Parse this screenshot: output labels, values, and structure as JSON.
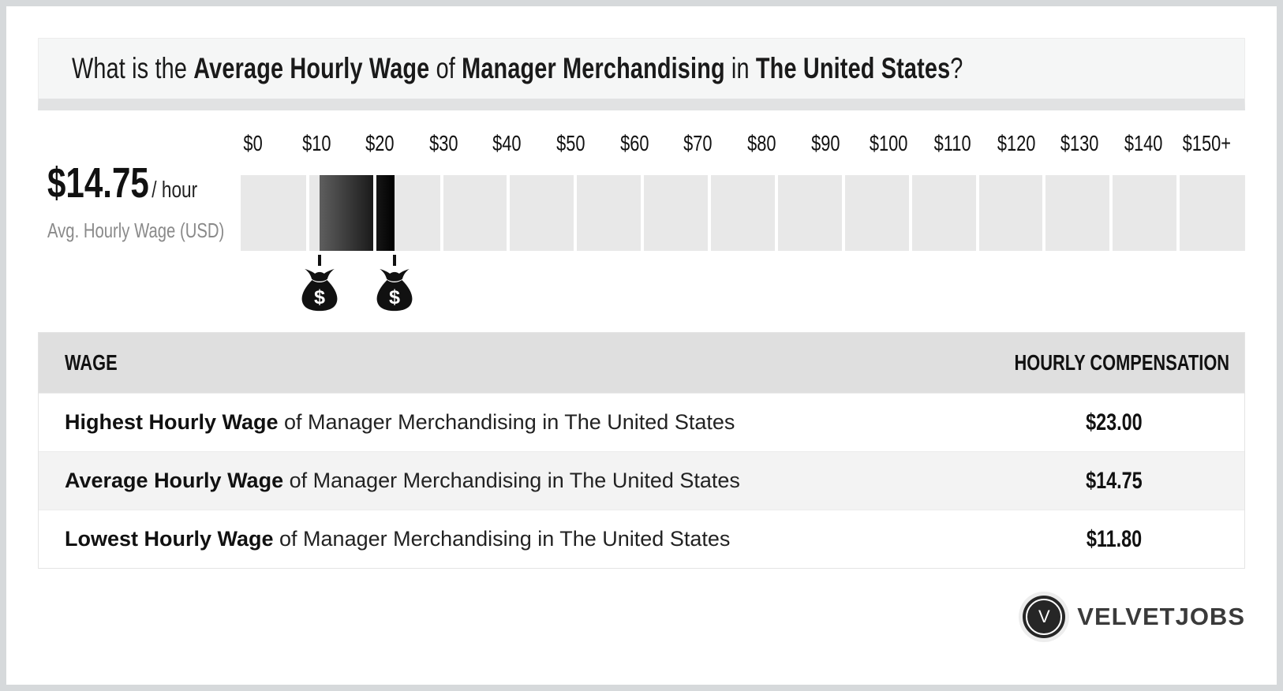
{
  "title": {
    "part1": "What is the ",
    "part2": "Average Hourly Wage",
    "part3": " of ",
    "part4": "Manager Merchandising",
    "part5": " in ",
    "part6": "The United States",
    "part7": "?"
  },
  "wage_summary": {
    "amount": "$14.75",
    "per": "/ hour",
    "caption": "Avg. Hourly Wage (USD)"
  },
  "chart_data": {
    "type": "bar",
    "subtype": "horizontal-wage-range-scale",
    "title": "What is the Average Hourly Wage of Manager Merchandising in The United States?",
    "tick_labels": [
      "$0",
      "$10",
      "$20",
      "$30",
      "$40",
      "$50",
      "$60",
      "$70",
      "$80",
      "$90",
      "$100",
      "$110",
      "$120",
      "$130",
      "$140",
      "$150+"
    ],
    "axis_min": 0,
    "axis_max": 150,
    "segments": 15,
    "lowest_wage": 11.8,
    "highest_wage": 23.0,
    "average_wage": 14.75,
    "range_markers": [
      {
        "icon": "money-bag-icon",
        "value": 11.8
      },
      {
        "icon": "money-bag-icon",
        "value": 23.0
      }
    ],
    "colors": {
      "track": "#e8e8e8",
      "range_start": "#5e5e5e",
      "range_end": "#000000",
      "marker": "#111111"
    },
    "legend": "off",
    "grid": "off"
  },
  "table": {
    "header_wage": "WAGE",
    "header_compensation": "HOURLY COMPENSATION",
    "rows": [
      {
        "bold": "Highest Hourly Wage",
        "rest": " of Manager Merchandising in The United States",
        "value": "$23.00"
      },
      {
        "bold": "Average Hourly Wage",
        "rest": " of Manager Merchandising in The United States",
        "value": "$14.75"
      },
      {
        "bold": "Lowest Hourly Wage",
        "rest": " of Manager Merchandising in The United States",
        "value": "$11.80"
      }
    ]
  },
  "footer": {
    "brand": "VELVETJOBS",
    "logo_letter": "V"
  }
}
